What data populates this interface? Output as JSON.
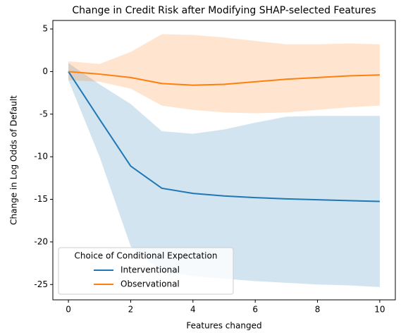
{
  "chart_data": {
    "type": "line",
    "title": "Change in Credit Risk after Modifying SHAP-selected Features",
    "xlabel": "Features changed",
    "ylabel": "Change in Log Odds of Default",
    "x": [
      0,
      1,
      2,
      3,
      4,
      5,
      6,
      7,
      8,
      9,
      10
    ],
    "series": [
      {
        "name": "Interventional",
        "color": "#1f77b4",
        "values": [
          0,
          -5.6,
          -11.1,
          -13.7,
          -14.3,
          -14.6,
          -14.8,
          -14.95,
          -15.05,
          -15.15,
          -15.25
        ],
        "upper": [
          1.0,
          -1.5,
          -3.8,
          -7.0,
          -7.3,
          -6.8,
          -6.0,
          -5.3,
          -5.2,
          -5.2,
          -5.2
        ],
        "lower": [
          -1.0,
          -10.0,
          -20.5,
          -23.5,
          -24.0,
          -24.3,
          -24.6,
          -24.8,
          -25.0,
          -25.1,
          -25.3
        ]
      },
      {
        "name": "Observational",
        "color": "#ff7f0e",
        "values": [
          0,
          -0.3,
          -0.7,
          -1.4,
          -1.6,
          -1.5,
          -1.2,
          -0.9,
          -0.7,
          -0.5,
          -0.4
        ],
        "upper": [
          1.2,
          0.9,
          2.3,
          4.4,
          4.3,
          4.0,
          3.6,
          3.2,
          3.2,
          3.3,
          3.2
        ],
        "lower": [
          -1.0,
          -1.2,
          -2.0,
          -4.0,
          -4.5,
          -4.8,
          -4.9,
          -4.8,
          -4.5,
          -4.2,
          -4.0
        ]
      }
    ],
    "xlim": [
      -0.5,
      10.5
    ],
    "xticks": [
      0,
      2,
      4,
      6,
      8,
      10
    ],
    "ylim": [
      -26.8,
      6
    ],
    "yticks": [
      -25,
      -20,
      -15,
      -10,
      -5,
      0,
      5
    ],
    "legend_title": "Choice of Conditional Expectation",
    "legend": "lower left",
    "grid": false
  }
}
